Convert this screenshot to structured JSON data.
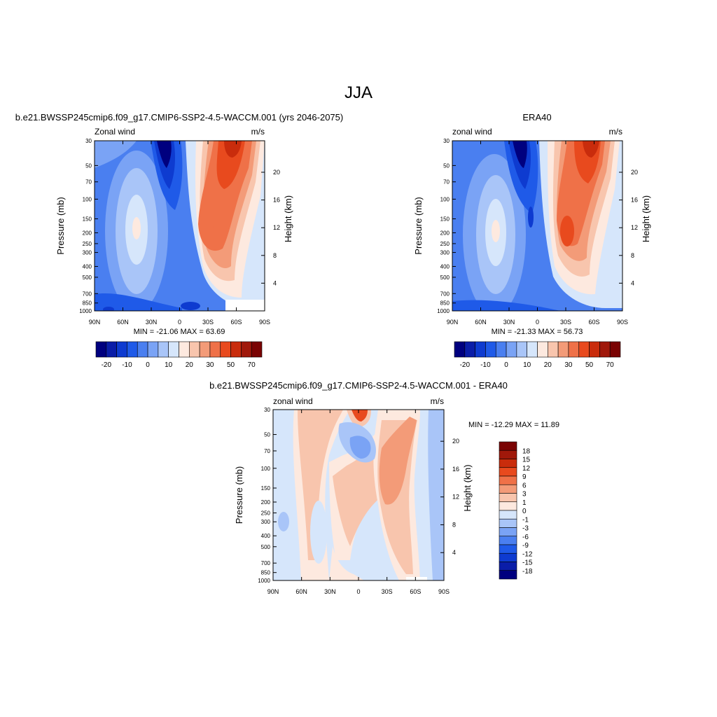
{
  "page": {
    "title": "JJA"
  },
  "colors": {
    "panel_palette": [
      "#00007f",
      "#0a1da8",
      "#0e3bd0",
      "#1f5ae8",
      "#4a7ff0",
      "#7aa3f5",
      "#a9c5f8",
      "#d6e6fb",
      "#fde9df",
      "#f8c5ad",
      "#f39b78",
      "#ef7148",
      "#e84a1e",
      "#c92c0c",
      "#a0180a",
      "#7a0303"
    ],
    "diff_palette": [
      "#00007f",
      "#0a1da8",
      "#0e3bd0",
      "#1f5ae8",
      "#4a7ff0",
      "#7aa3f5",
      "#a9c5f8",
      "#d6e6fb",
      "#fde9df",
      "#f8c5ad",
      "#f39b78",
      "#ef7148",
      "#e84a1e",
      "#c92c0c",
      "#a0180a",
      "#7a0303"
    ]
  },
  "chart_data": [
    {
      "type": "heatmap",
      "id": "model",
      "title": "b.e21.BWSSP245cmip6.f09_g17.CMIP6-SSP2-4.5-WACCM.001 (yrs 2046-2075)",
      "left_string": "Zonal wind",
      "right_string": "m/s",
      "ylabel": "Pressure (mb)",
      "ylabel_right": "Height (km)",
      "x_ticks": [
        "90N",
        "60N",
        "30N",
        "0",
        "30S",
        "60S",
        "90S"
      ],
      "y_ticks": [
        "30",
        "50",
        "70",
        "100",
        "150",
        "200",
        "250",
        "300",
        "400",
        "500",
        "700",
        "850",
        "1000"
      ],
      "y_ticks_right": [
        "20",
        "16",
        "12",
        "8",
        "4"
      ],
      "stats": "MIN = -21.06  MAX =  63.69",
      "colorbar_labels": [
        "-20",
        "-10",
        "0",
        "10",
        "20",
        "30",
        "50",
        "70"
      ],
      "features": [
        {
          "lat": -45,
          "p": 200,
          "value": 42
        },
        {
          "lat": -50,
          "p": 35,
          "value": 63.69
        },
        {
          "lat": 15,
          "p": 35,
          "value": -21.06
        },
        {
          "lat": 45,
          "p": 200,
          "value": 20
        }
      ]
    },
    {
      "type": "heatmap",
      "id": "obs",
      "title": "ERA40",
      "left_string": "zonal wind",
      "right_string": "m/s",
      "ylabel": "Pressure (mb)",
      "ylabel_right": "Height (km)",
      "x_ticks": [
        "90N",
        "60N",
        "30N",
        "0",
        "30S",
        "60S",
        "90S"
      ],
      "y_ticks": [
        "30",
        "50",
        "70",
        "100",
        "150",
        "200",
        "250",
        "300",
        "400",
        "500",
        "700",
        "850",
        "1000"
      ],
      "y_ticks_right": [
        "20",
        "16",
        "12",
        "8",
        "4"
      ],
      "stats": "MIN = -21.33  MAX =  56.73",
      "colorbar_labels": [
        "-20",
        "-10",
        "0",
        "10",
        "20",
        "30",
        "50",
        "70"
      ],
      "features": [
        {
          "lat": -40,
          "p": 200,
          "value": 40
        },
        {
          "lat": -55,
          "p": 35,
          "value": 56.73
        },
        {
          "lat": 20,
          "p": 35,
          "value": -21.33
        },
        {
          "lat": 42,
          "p": 200,
          "value": 20
        }
      ]
    },
    {
      "type": "heatmap",
      "id": "diff",
      "title": "b.e21.BWSSP245cmip6.f09_g17.CMIP6-SSP2-4.5-WACCM.001 - ERA40",
      "left_string": "zonal wind",
      "right_string": "m/s",
      "ylabel": "Pressure (mb)",
      "ylabel_right": "Height (km)",
      "x_ticks": [
        "90N",
        "60N",
        "30N",
        "0",
        "30S",
        "60S",
        "90S"
      ],
      "y_ticks": [
        "30",
        "50",
        "70",
        "100",
        "150",
        "200",
        "250",
        "300",
        "400",
        "500",
        "700",
        "850",
        "1000"
      ],
      "y_ticks_right": [
        "20",
        "16",
        "12",
        "8",
        "4"
      ],
      "stats": "MIN = -12.29  MAX =  11.89",
      "colorbar_labels": [
        "18",
        "15",
        "12",
        "9",
        "6",
        "3",
        "1",
        "0",
        "-1",
        "-3",
        "-6",
        "-9",
        "-12",
        "-15",
        "-18"
      ],
      "features": [
        {
          "lat": -45,
          "p": 100,
          "value": 9
        },
        {
          "lat": 0,
          "p": 70,
          "value": -12.29
        },
        {
          "lat": 0,
          "p": 30,
          "value": 11.89
        },
        {
          "lat": -30,
          "p": 200,
          "value": 5
        }
      ]
    }
  ]
}
